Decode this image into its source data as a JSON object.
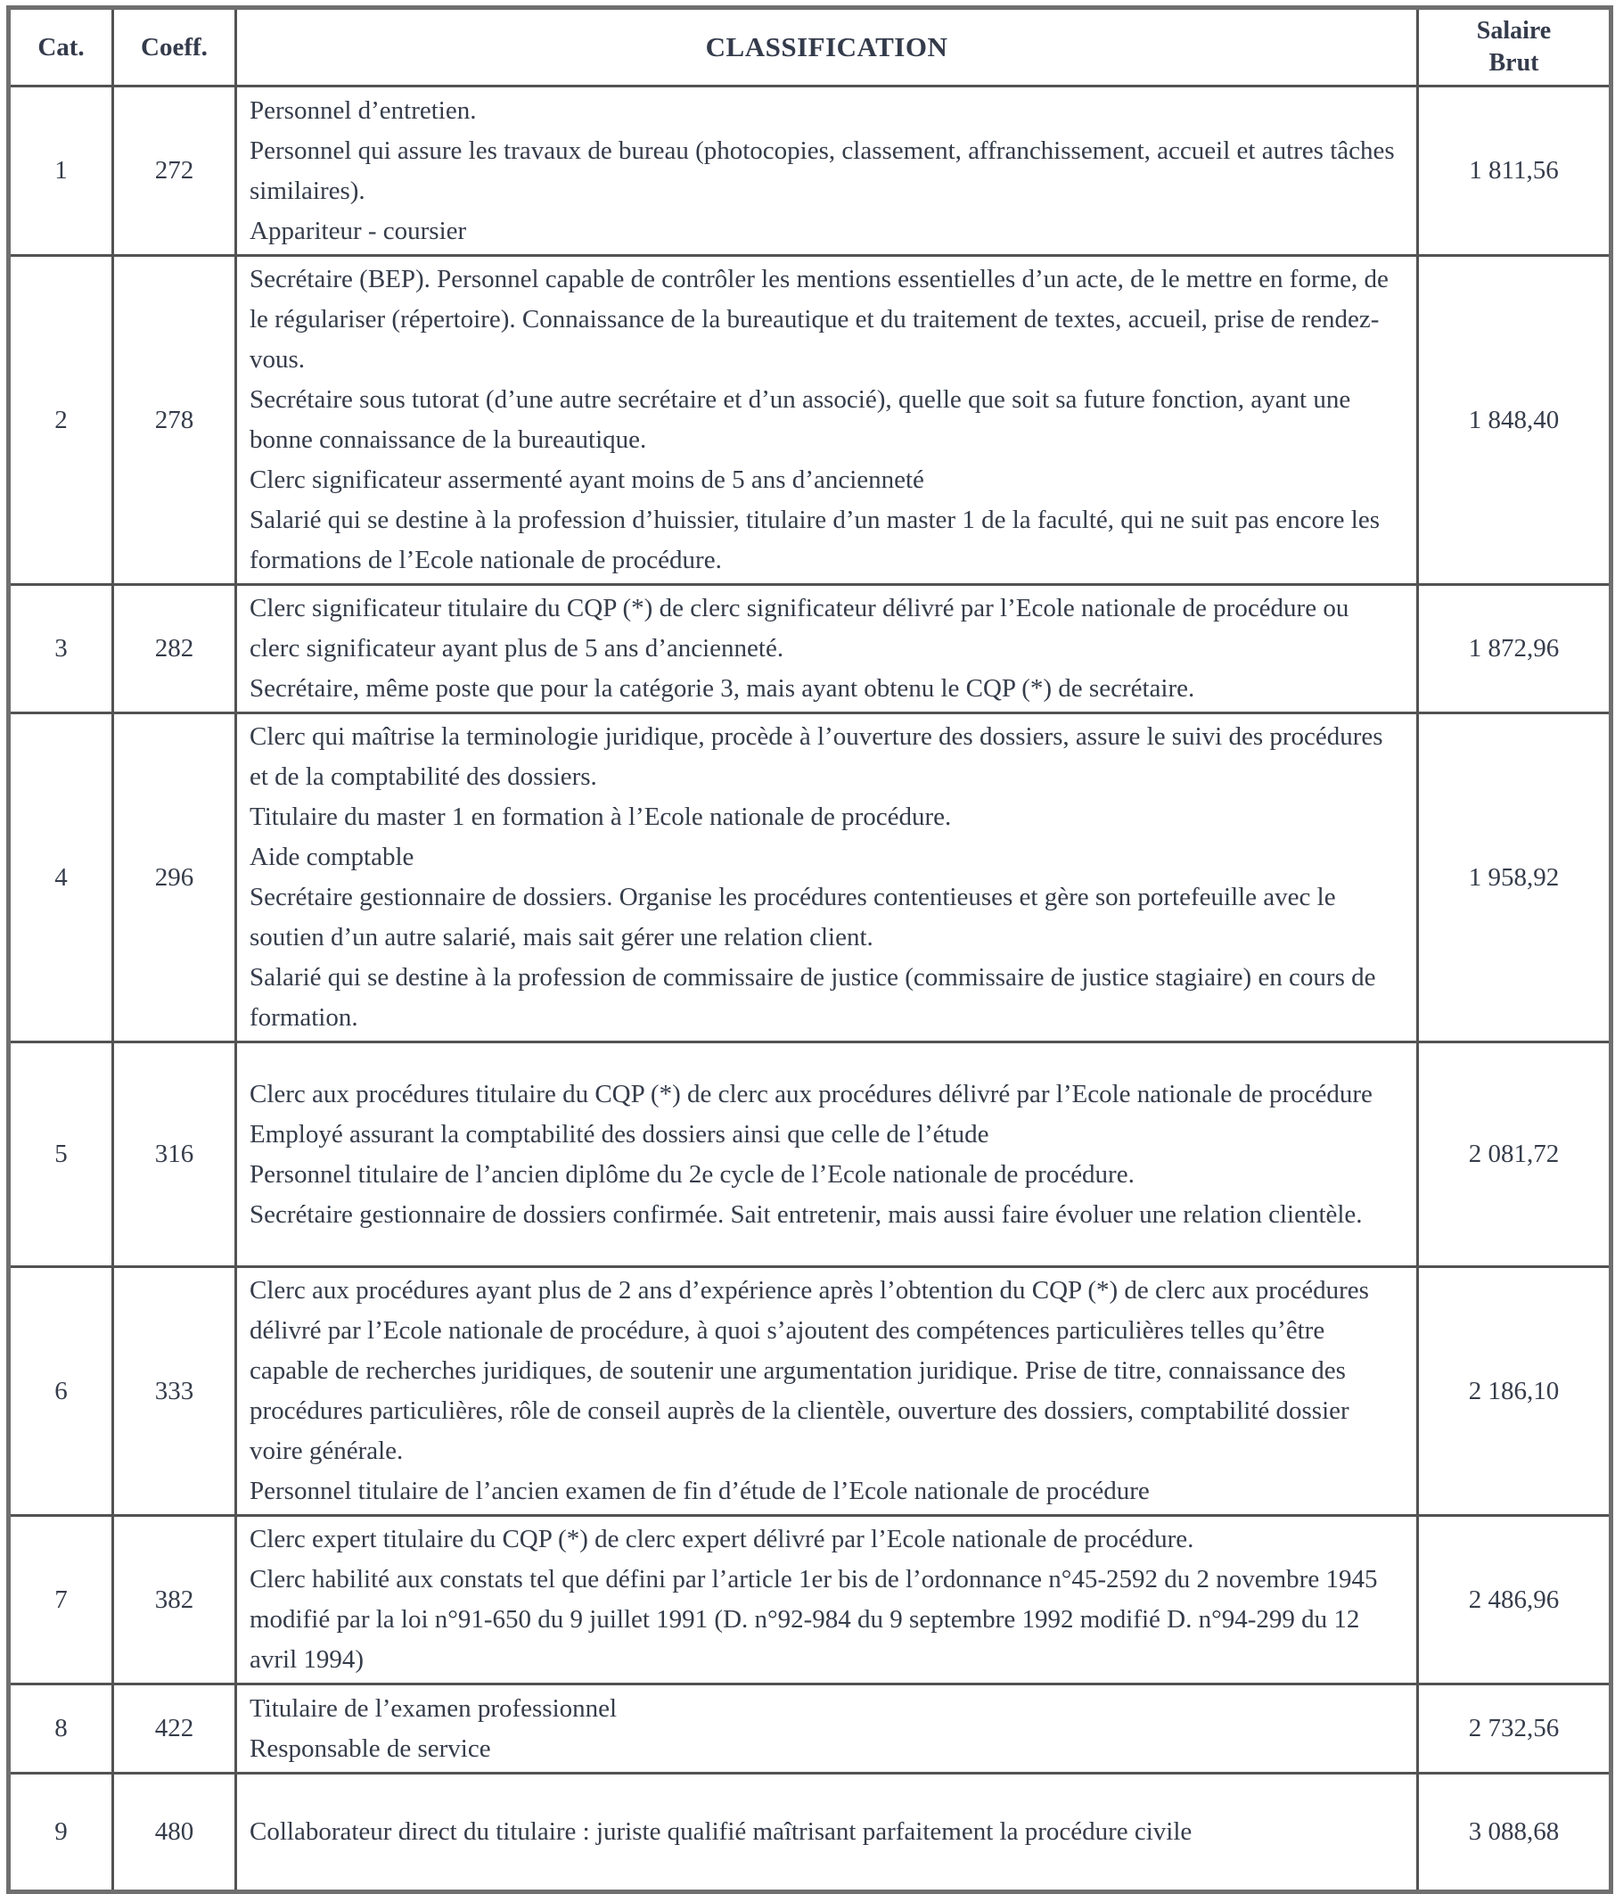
{
  "table": {
    "headers": {
      "cat": "Cat.",
      "coeff": "Coeff.",
      "classification": "CLASSIFICATION",
      "salary": "Salaire\nBrut"
    },
    "rows": [
      {
        "cat": "1",
        "coeff": "272",
        "classification": [
          "Personnel d’entretien.",
          "Personnel qui assure les travaux de bureau (photocopies, classement, affranchissement, accueil et autres tâches similaires).",
          "Appariteur - coursier"
        ],
        "salaire_brut": "1 811,56"
      },
      {
        "cat": "2",
        "coeff": "278",
        "classification": [
          "Secrétaire (BEP). Personnel capable de contrôler les mentions essentielles d’un acte, de le mettre en forme, de le régulariser (répertoire). Connaissance de la bureautique et du traitement de textes, accueil, prise de rendez-vous.",
          "Secrétaire sous tutorat (d’une autre secrétaire et d’un associé), quelle que soit sa future fonction, ayant une bonne connaissance de la bureautique.",
          "Clerc significateur assermenté ayant moins de 5 ans d’ancienneté",
          "Salarié qui se destine à la profession d’huissier, titulaire d’un master 1 de la faculté, qui ne suit pas encore les formations de l’Ecole nationale de procédure."
        ],
        "salaire_brut": "1 848,40"
      },
      {
        "cat": "3",
        "coeff": "282",
        "classification": [
          "Clerc significateur titulaire du CQP (*) de clerc significateur délivré par l’Ecole nationale de procédure ou clerc significateur ayant plus de 5 ans d’ancienneté.",
          "Secrétaire, même poste que pour la catégorie 3, mais ayant obtenu le CQP (*) de secrétaire."
        ],
        "salaire_brut": "1 872,96"
      },
      {
        "cat": "4",
        "coeff": "296",
        "classification": [
          "Clerc qui maîtrise la terminologie juridique, procède à l’ouverture des dossiers, assure le suivi des procédures et de la comptabilité des dossiers.",
          "Titulaire du master 1 en formation à l’Ecole nationale de procédure.",
          "Aide comptable",
          "Secrétaire gestionnaire de dossiers. Organise les procédures contentieuses et gère son portefeuille avec le soutien d’un autre salarié, mais sait gérer une relation client.",
          "Salarié qui se destine à la profession de commissaire de justice (commissaire de justice stagiaire) en cours de formation."
        ],
        "salaire_brut": "1 958,92"
      },
      {
        "cat": "5",
        "coeff": "316",
        "classification": [
          "Clerc aux procédures titulaire du CQP (*) de clerc aux procédures délivré par l’Ecole nationale de procédure",
          "Employé assurant la comptabilité des dossiers ainsi que celle de l’étude",
          "Personnel titulaire de l’ancien diplôme du 2e cycle de l’Ecole nationale de procédure.",
          "Secrétaire gestionnaire de dossiers confirmée. Sait entretenir, mais aussi faire évoluer une relation clientèle."
        ],
        "salaire_brut": "2 081,72"
      },
      {
        "cat": "6",
        "coeff": "333",
        "classification": [
          "Clerc aux procédures ayant plus de 2 ans d’expérience après l’obtention du CQP (*) de clerc aux procédures délivré par l’Ecole nationale de procédure, à quoi s’ajoutent des compétences particulières telles qu’être capable de recherches juridiques, de soutenir une argumentation juridique. Prise de titre, connaissance des procédures particulières, rôle de conseil auprès de la clientèle, ouverture des dossiers, comptabilité dossier voire générale.",
          "Personnel titulaire de l’ancien examen de fin d’étude de l’Ecole nationale de procédure"
        ],
        "salaire_brut": "2 186,10"
      },
      {
        "cat": "7",
        "coeff": "382",
        "classification": [
          "Clerc expert titulaire du CQP (*) de clerc expert délivré par l’Ecole nationale de procédure.",
          "Clerc habilité aux constats tel que défini par l’article 1er bis de l’ordonnance n°45-2592 du 2 novembre 1945 modifié par la loi n°91-650 du 9 juillet 1991 (D. n°92-984 du 9 septembre 1992 modifié D. n°94-299 du 12 avril 1994)"
        ],
        "salaire_brut": "2 486,96"
      },
      {
        "cat": "8",
        "coeff": "422",
        "classification": [
          "Titulaire de l’examen professionnel",
          "Responsable de service"
        ],
        "salaire_brut": "2 732,56"
      },
      {
        "cat": "9",
        "coeff": "480",
        "classification": [
          "Collaborateur direct du titulaire : juriste qualifié maîtrisant parfaitement la procédure civile"
        ],
        "salaire_brut": "3 088,68"
      }
    ]
  }
}
